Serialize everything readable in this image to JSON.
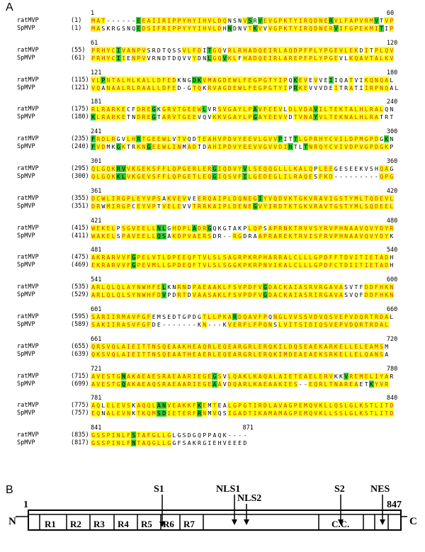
{
  "panel_a_label": "A",
  "panel_b_label": "B",
  "blocks": [
    {
      "ruler": [
        "1",
        "60"
      ],
      "rows": [
        {
          "name": "ratMVP",
          "start": "(1)",
          "seq": "MAT------EEAIIRIPPYHYIHVLDQNSNVSRVEVGPKTYIRQDNERVLFAPVRMVTVP",
          "mask": "yyy------gyyyyyyyyyyyyyyyyy   yg gyyyyyyyyyyyyygyyyyyyyyg yy"
        },
        {
          "name": "SpMVP",
          "start": "(1)",
          "seq": "MASKRGSNQEDSIFRIPPYYYIHVLDHNDNVTKVVVGPKTYIRQDNERVIFGPEKMITIP",
          "mask": "yy       gyyyyyyyyyyyyyyyy g   ygy yyyyyyyyyyyyygyyyyyyyyg yy"
        }
      ]
    },
    {
      "ruler": [
        "61",
        "120"
      ],
      "rows": [
        {
          "name": "ratMVP",
          "start": "(55)",
          "seq": "PRHYCIVANPVSRDTQSSVLFDITGQVRLRHADQEIRLAQDPFPLYPGEVLEKDITPLQV",
          "mask": "yyyyygyyyyy       yyyy gyy yyyyyyyyyyyyyyyyyyyyyyyyyy y yyyy"
        },
        {
          "name": "SpMVP",
          "start": "(61)",
          "seq": "PRHYCIIENPVVRNDTDQVVYDNLGQVKLFHADQEIRLAREPFPLYPGEVLKQAVTALKV",
          "mask": "yyyyygy yyy         y  gyygyy yyyyyyyyyyyyyyyyyyy  yyyyyyyyy"
        }
      ]
    },
    {
      "ruler": [
        "121",
        "180"
      ],
      "rows": [
        {
          "name": "ratMVP",
          "start": "(115)",
          "seq": "VLPNTALHLKALLDFEDKNGDKVMAGDEWLFEGPGTYIPQKEVEVVEIIQATVIKQNQAL",
          "mask": "yygyyyyyyyyyyyyyy   ggyyyyyyyyyyyyyyyyy gyy y  g   y  yyyyy"
        },
        {
          "name": "SpMVP",
          "start": "(121)",
          "seq": "VQANAALRLRAALLDFED-GTQKRVAGDEWLFEGPGTYIPRKEVVVDEITRATIIRPNQAL",
          "mask": "yy yyyyyyyyyyyyyy   yy yyyyyyyyyyyyyyyy gyy     y  y  yyyyy"
        }
      ]
    },
    {
      "ruler": [
        "181",
        "240"
      ],
      "rows": [
        {
          "name": "ratMVP",
          "start": "(175)",
          "seq": "RLRARKECFDREGKGRVTGEEWLVRSVGAYLPAVFEEVLDLVDAVILTEKTALHLRALQN",
          "mask": "yyyyyyy  yyyg yyyyyyyyg  yyyyyyygyyyyy yyyyygyyyyyyyyyyyyy"
        },
        {
          "name": "SpMVP",
          "start": "(180)",
          "seq": "KLRARKETNDREGTARVTGEEVQVKKVGAYLPGAYEEVVDTVNAYVLTEKNALHLRATRT",
          "mask": "gyyyyyy  yyyg yyyyyyy   yyyyyyyygyyyyyy yyyygyyyyyyyyyyyy"
        }
      ]
    },
    {
      "ruler": [
        "241",
        "300"
      ],
      "rows": [
        {
          "name": "ratMVP",
          "start": "(235)",
          "seq": "FRDLRGVLHRTGEEWLVTVQDTEAHVPDVYEEVLGVVPITTLGPRHYCVILDPMGPDGKN",
          "mask": "gyyyy  yygyyyyyy yy  yyyyyyyyyyyyyyyyg  gyyyyyyyyyyyyyyyy g"
        },
        {
          "name": "SpMVP",
          "start": "(240)",
          "seq": "FVDMKGKTRKNGEEWLINMADTDAHIPDVYEEVVGVVDINTLTNRQYCVIVDPVGPDGKP",
          "mask": "gyy  gy  yygyyyyyy yy  yyyyyyyyyyyyyyyyg  gyyyyyyyyyyyyyyyy g"
        }
      ]
    },
    {
      "ruler": [
        "301",
        "360"
      ],
      "rows": [
        {
          "name": "ratMVP",
          "start": "(295)",
          "seq": "QLGQKRVVKGEKSFFLQPGERLERGIQDVYVLSEQQGLLLKALQPLEEGESEEKVSHQAG",
          "mask": "yyyyyggyyyyyyyyyyyyyyyyygyyyyygyyyyyyyyyyyyy yyy         yy"
        },
        {
          "name": "SpMVP",
          "start": "(300)",
          "seq": "QLGQKKLVKGEVSFFLQPGETLEQGIQSVFILGEDEGLILRAQESFKD---------QPG",
          "mask": "yyyyyggyyyyyyyyyyyyyyyyygyyyyygyyyyyyyyyyyyy yyy         yyy"
        }
      ]
    },
    {
      "ruler": [
        "361",
        "420"
      ],
      "rows": [
        {
          "name": "ratMVP",
          "start": "(355)",
          "seq": "DCWLIRGPLEYVPSAKVEVVEERQAIPLDQNEGIYVQDVKTGKVRAVIGSTYMLTQDEVL",
          "mask": "yyyyyyyyyyyyyy yyyy  yyyyyyyyyyyygyyyyyyyyyyyyyyyyyyyyyyyyyyy"
        },
        {
          "name": "SpMVP",
          "start": "(351)",
          "seq": "DRWMIRGPCEYVPTVELEVVTRRKAIPLDENEGVYIRDTKTGKVRAVTGSTYMLSQDEEL",
          "mask": "yy yyyyy yyyy yyyy  yyyyyyyyyyyygyyyyyyyyyyyyyyyyyyyyyyyyyyy"
        }
      ]
    },
    {
      "ruler": [
        "421",
        "480"
      ],
      "rows": [
        {
          "name": "ratMVP",
          "start": "(415)",
          "seq": "WEKELPSGVEELLNLGHDPLADRGQKGTAKPLQPSAPRNKTRVVSYRVPHNAAVQVYDYR",
          "mask": "yyyyy yyyyyyygg yyyygyyg       yyy yyyyyyyyyyyyyyyyyyyyyyyyy"
        },
        {
          "name": "SpMVP",
          "start": "(411)",
          "seq": "WAKELSPAVEELLQSAKDPVAERSDR--RGDRAAPRAREKTRVISFRVPHNAAVQVYDYK",
          "mask": "yyyyy yyyyyyygg yyyyyyyy    yy   yyyyyyyyyyyyyyyyyyyyyyyyyy"
        }
      ]
    },
    {
      "ruler": [
        "481",
        "540"
      ],
      "rows": [
        {
          "name": "ratMVP",
          "start": "(475)",
          "seq": "AKRARVVFGPELVTLDPEEQFTVLSLSAGRPKRPHARRALCLLLGPDFFTDVITIETADH",
          "mask": "yyyyyyyygyyyyyyyyyyyyyyyyyyyyyyyyyyyyyyyyyyyyyyyyyyyyyyyyyy"
        },
        {
          "name": "SpMVP",
          "start": "(469)",
          "seq": "EKRARVVFGPEVMLLGPDEQFTVLSLSGGKPKRPNVIKALCLLLGPDFCTDIITIETADH",
          "mask": "yyyyyyyygyyyyyyyyyyyyyyyyyyyyyyyyyyyyyyyyyyyyyyyyyyyyyyyyyy"
        }
      ]
    },
    {
      "ruler": [
        "541",
        "600"
      ],
      "rows": [
        {
          "name": "ratMVP",
          "start": "(535)",
          "seq": "ARLQLQLAYNWHFELKNRNDPAEAAKLFSVPDFVGDACKAIASRVRGAVASVTFDDFHKN",
          "mask": "yyyyyyyyyyyyyyg  yy yyyyyyyyyyyyyygyyyyyyyyyyyyyyy    yyyyyy"
        },
        {
          "name": "SpMVP",
          "start": "(529)",
          "seq": "ARLQLQLSYNWHFDVPDRTDVAASAKLFSVPDFVGDACKAIASRIRGAVASVQFDDFHKN",
          "mask": "yyyyyyyyyyyyyyg  yy yyyyyyyyyyyyyygyyyyyyyyyyyyyyy    yyyyyy"
        }
      ]
    },
    {
      "ruler": [
        "601",
        "660"
      ],
      "rows": [
        {
          "name": "ratMVP",
          "start": "(595)",
          "seq": "SARIIRMAVFGFEMSEDTGPDGTLLPKARDQAVFPQNGLVVSSVDVQSVEPVDQRTRDAL",
          "mask": "yyyyyyyyyyyy          yyyyyygyyyyyy yyyyyyyyyyyyyyyyyyyyyyy"
        },
        {
          "name": "SpMVP",
          "start": "(589)",
          "seq": "SAKIIRASVFGFDE-------KN---KVERFLFPQNSLVITSIDIQSVEPVDQRTRDAL",
          "mask": "yyyyyyyyyyyy          yy   yyyyyyyyy yyyyyyyyyyyyyyyyyyyyyy"
        }
      ]
    },
    {
      "ruler": [
        "661",
        "720"
      ],
      "rows": [
        {
          "name": "ratMVP",
          "start": "(655)",
          "seq": "QRSVQLAIEITTNSQEAAKHEAQRLEQEARGRLERQKILDQSEAEKARKELLELEAMSM",
          "mask": "yyyyyyyyyyyyyyyyyyyyyyyyyyyyyyyyyyyyyyyyyyyyyyyyyyyyyyyyyy"
        },
        {
          "name": "SpMVP",
          "start": "(639)",
          "seq": "QKSVQLAIEITTNSQEAATHEAERLEQEARGRLERQKIMDEAEAEKSRKELLELQANSA",
          "mask": "yyyyyyyyyyyyyyyyyyyyyyyyyyyyyyyyyyyyyyyyyyyyyyyyyyyyyyyyyy"
        }
      ]
    },
    {
      "ruler": [
        "721",
        "780"
      ],
      "rows": [
        {
          "name": "ratMVP",
          "start": "(715)",
          "seq": "AVESTGNAKAEAESRAEAARIEGEGSVLQAKLKAQALAIETEAELERVKKVREMELIYAR",
          "mask": "yyyyyygyyyyyyyyyyyyyyyyygy yyyyyyyyyyyyyyyyyyyyy  gyyyyyyyy"
        },
        {
          "name": "SpMVP",
          "start": "(699)",
          "seq": "AVESTGQAKAEAQSRAEAARIEGEAAVDQARLKAEAAKIES--EQRLTNAREAETKYVR",
          "mask": "yyyyyygyyyyyyyyyyyyyyyyygy yyyyyyyyyyyyyy  yyyyyyyyyy  gyyy"
        }
      ]
    },
    {
      "ruler": [
        "781",
        "840"
      ],
      "rows": [
        {
          "name": "ratMVP",
          "start": "(775)",
          "seq": "AQLELEVSKAQQLANVEAKKFKEMTEALGPGTIRDLAVAGPEMQVKLLQSLGLKSTLITD",
          "mask": "yy yyyyy yyyyggyyyyyygy y  yyyyyyyyyyyyyyyyyyyyyyyyyyyyyyyyy"
        },
        {
          "name": "SpMVP",
          "start": "(757)",
          "seq": "EQNALEVNKTKQMSDIETERFRNMVQSIGADTIKAMAMAGPEMQVKLLSSLGLKSTLITD",
          "mask": "yy yyyyy yyyyggyyyyyygy y  yyyyyyyyyyyyyyyyyyyyyyyyyyyyyyyyy"
        }
      ]
    },
    {
      "ruler": [
        "841",
        "871"
      ],
      "rows": [
        {
          "name": "ratMVP",
          "start": "(835)",
          "seq": "GSSPINLFSTAFGLLGLGSDGQPPAQK----",
          "mask": "yyyyyyyygyyyyyyy"
        },
        {
          "name": "SpMVP",
          "start": "(817)",
          "seq": "GSSPINLFNTAQGLLGGFSAKRGIEHVEEED",
          "mask": "yyyyyyyygyyyyyyy"
        }
      ]
    }
  ],
  "diagram": {
    "n_term": "N",
    "c_term": "C",
    "start_num": "1",
    "end_num": "847",
    "repeats": [
      "R1",
      "R2",
      "R3",
      "R4",
      "R5",
      "R6",
      "R7"
    ],
    "cc_label": "C.C.",
    "markers": [
      "S1",
      "NLS1",
      "NLS2",
      "S2",
      "NES"
    ]
  }
}
